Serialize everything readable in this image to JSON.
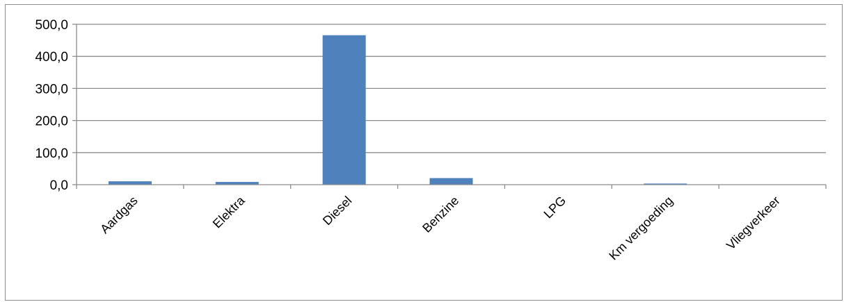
{
  "chart_data": {
    "type": "bar",
    "title": "",
    "xlabel": "",
    "ylabel": "",
    "categories": [
      "Aardgas",
      "Elektra",
      "Diesel",
      "Benzine",
      "LPG",
      "Km vergoeding",
      "Vliegverkeer"
    ],
    "values": [
      10.5,
      8.5,
      466.0,
      20.5,
      0.0,
      3.5,
      0.0
    ],
    "yticks": [
      "0,0",
      "100,0",
      "200,0",
      "300,0",
      "400,0",
      "500,0"
    ],
    "ylim": [
      0,
      500
    ],
    "grid": true,
    "legend": "none",
    "bar_color": "#4f81bd"
  }
}
